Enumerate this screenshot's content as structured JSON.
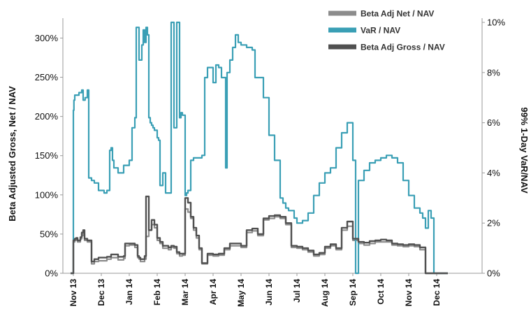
{
  "chart_data": {
    "type": "line",
    "title": "",
    "xlabel": "",
    "ylabel": "Beta Adjusted Gross, Net / NAV",
    "y2label": "99% 1-Day VaR/NAV",
    "ylim": [
      0,
      3.2
    ],
    "y2lim": [
      0,
      10
    ],
    "x_tick_labels": [
      "Nov 13",
      "Dec 13",
      "Jan 14",
      "Feb 14",
      "Mar 14",
      "Apr 14",
      "May 14",
      "Jun 14",
      "Jul 14",
      "Aug 14",
      "Sep 14",
      "Oct 14",
      "Nov 14",
      "Dec 14"
    ],
    "y_tick_labels": [
      "0%",
      "50%",
      "100%",
      "150%",
      "200%",
      "250%",
      "300%"
    ],
    "y_tick_values": [
      0,
      0.5,
      1.0,
      1.5,
      2.0,
      2.5,
      3.0
    ],
    "y2_tick_labels": [
      "0%",
      "2%",
      "4%",
      "6%",
      "8%",
      "10%"
    ],
    "y2_tick_values": [
      0,
      2,
      4,
      6,
      8,
      10
    ],
    "legend_position": "top-right",
    "grid": false,
    "series": [
      {
        "name": "Beta Adj Net / NAV",
        "axis": "left",
        "color": "#8c8c8c",
        "x": [
          -0.1,
          0.0,
          0.05,
          0.1,
          0.15,
          0.25,
          0.3,
          0.35,
          0.4,
          0.5,
          0.65,
          0.75,
          0.9,
          1.2,
          1.35,
          1.5,
          1.6,
          1.8,
          1.85,
          2.0,
          2.2,
          2.3,
          2.35,
          2.4,
          2.55,
          2.6,
          2.7,
          2.8,
          2.9,
          3.0,
          3.1,
          3.2,
          3.4,
          3.5,
          3.6,
          3.7,
          3.8,
          3.9,
          4.0,
          4.1,
          4.2,
          4.3,
          4.4,
          4.5,
          4.6,
          4.7,
          4.8,
          5.0,
          5.2,
          5.4,
          5.6,
          5.8,
          6.0,
          6.2,
          6.4,
          6.6,
          6.8,
          7.0,
          7.2,
          7.4,
          7.6,
          7.8,
          8.0,
          8.2,
          8.4,
          8.6,
          8.8,
          9.0,
          9.2,
          9.4,
          9.6,
          9.8,
          10.0,
          10.2,
          10.4,
          10.6,
          10.8,
          11.0,
          11.2,
          11.4,
          11.6,
          11.8,
          12.0,
          12.2,
          12.4,
          12.6,
          12.8,
          13.0,
          13.2,
          13.4
        ],
        "values": [
          0.0,
          0.4,
          0.42,
          0.43,
          0.4,
          0.44,
          0.48,
          0.5,
          0.42,
          0.4,
          0.12,
          0.15,
          0.16,
          0.18,
          0.2,
          0.2,
          0.17,
          0.19,
          0.35,
          0.36,
          0.33,
          0.2,
          0.18,
          0.15,
          0.18,
          0.47,
          0.55,
          0.62,
          0.58,
          0.42,
          0.38,
          0.32,
          0.3,
          0.33,
          0.32,
          0.25,
          0.22,
          0.23,
          0.82,
          0.78,
          0.7,
          0.55,
          0.45,
          0.3,
          0.12,
          0.12,
          0.23,
          0.22,
          0.23,
          0.3,
          0.35,
          0.35,
          0.33,
          0.52,
          0.54,
          0.48,
          0.68,
          0.7,
          0.72,
          0.7,
          0.62,
          0.33,
          0.32,
          0.3,
          0.27,
          0.22,
          0.24,
          0.32,
          0.35,
          0.3,
          0.55,
          0.6,
          0.42,
          0.38,
          0.36,
          0.38,
          0.4,
          0.4,
          0.4,
          0.36,
          0.35,
          0.34,
          0.35,
          0.34,
          0.3,
          0.0,
          0.0,
          0.0,
          0.0,
          0.0
        ]
      },
      {
        "name": "VaR / NAV",
        "axis": "right",
        "color": "#3a9fb5",
        "x": [
          -0.1,
          0.0,
          0.02,
          0.05,
          0.1,
          0.2,
          0.3,
          0.35,
          0.42,
          0.5,
          0.55,
          0.65,
          0.75,
          0.9,
          1.1,
          1.2,
          1.3,
          1.35,
          1.4,
          1.45,
          1.6,
          1.8,
          1.9,
          2.0,
          2.1,
          2.2,
          2.25,
          2.35,
          2.45,
          2.5,
          2.55,
          2.6,
          2.65,
          2.7,
          2.75,
          2.8,
          2.85,
          2.9,
          3.0,
          3.05,
          3.1,
          3.2,
          3.3,
          3.5,
          3.6,
          3.7,
          3.8,
          3.85,
          3.9,
          4.0,
          4.05,
          4.1,
          4.2,
          4.3,
          4.5,
          4.6,
          4.7,
          4.8,
          5.0,
          5.1,
          5.2,
          5.3,
          5.45,
          5.5,
          5.6,
          5.7,
          5.8,
          5.9,
          6.0,
          6.1,
          6.2,
          6.4,
          6.5,
          6.6,
          6.8,
          7.0,
          7.2,
          7.4,
          7.5,
          7.6,
          7.7,
          7.9,
          8.0,
          8.2,
          8.4,
          8.6,
          8.8,
          9.0,
          9.2,
          9.4,
          9.6,
          9.8,
          10.0,
          10.1,
          10.2,
          10.4,
          10.6,
          10.8,
          11.0,
          11.2,
          11.4,
          11.6,
          11.8,
          12.0,
          12.2,
          12.4,
          12.5,
          12.6,
          12.7,
          12.8,
          12.9,
          13.0,
          13.2,
          13.4
        ],
        "values": [
          0.0,
          6.5,
          6.9,
          7.1,
          7.1,
          7.2,
          7.3,
          6.9,
          7.0,
          7.3,
          3.8,
          3.7,
          3.6,
          3.3,
          3.2,
          3.3,
          4.9,
          5.0,
          4.5,
          4.2,
          4.0,
          4.3,
          4.3,
          4.5,
          5.8,
          6.2,
          9.8,
          8.5,
          9.1,
          9.7,
          9.2,
          9.8,
          9.5,
          6.2,
          6.0,
          5.9,
          5.8,
          5.7,
          5.4,
          5.3,
          3.5,
          4.0,
          3.2,
          10.2,
          5.8,
          10.2,
          6.2,
          6.4,
          6.3,
          3.1,
          3.2,
          3.3,
          4.5,
          4.6,
          4.6,
          4.7,
          7.8,
          8.2,
          7.6,
          8.3,
          8.2,
          7.8,
          4.2,
          8.0,
          8.5,
          9.0,
          9.5,
          9.2,
          9.1,
          9.1,
          9.0,
          8.9,
          7.8,
          7.8,
          7.0,
          5.5,
          4.5,
          3.0,
          2.8,
          2.6,
          2.5,
          2.2,
          2.0,
          2.1,
          2.4,
          3.1,
          3.6,
          4.0,
          4.2,
          5.0,
          5.6,
          6.0,
          4.5,
          0.0,
          3.7,
          4.1,
          4.4,
          4.5,
          4.6,
          4.7,
          4.6,
          4.4,
          3.7,
          3.1,
          2.6,
          2.4,
          2.2,
          1.8,
          2.5,
          2.2,
          0.0,
          0.0,
          0.0,
          0.0
        ]
      },
      {
        "name": "Beta Adj Gross / NAV",
        "axis": "left",
        "color": "#505050",
        "x": [
          -0.1,
          0.0,
          0.05,
          0.1,
          0.15,
          0.25,
          0.3,
          0.35,
          0.4,
          0.5,
          0.65,
          0.75,
          0.9,
          1.2,
          1.35,
          1.5,
          1.6,
          1.8,
          1.85,
          2.0,
          2.2,
          2.3,
          2.35,
          2.4,
          2.55,
          2.6,
          2.7,
          2.8,
          2.9,
          3.0,
          3.1,
          3.2,
          3.4,
          3.5,
          3.6,
          3.7,
          3.8,
          3.9,
          4.0,
          4.1,
          4.2,
          4.3,
          4.4,
          4.5,
          4.6,
          4.7,
          4.8,
          5.0,
          5.2,
          5.4,
          5.6,
          5.8,
          6.0,
          6.2,
          6.4,
          6.6,
          6.8,
          7.0,
          7.2,
          7.4,
          7.6,
          7.8,
          8.0,
          8.2,
          8.4,
          8.6,
          8.8,
          9.0,
          9.2,
          9.4,
          9.6,
          9.8,
          10.0,
          10.2,
          10.4,
          10.6,
          10.8,
          11.0,
          11.2,
          11.4,
          11.6,
          11.8,
          12.0,
          12.2,
          12.4,
          12.6,
          12.8,
          13.0,
          13.2,
          13.4
        ],
        "values": [
          0.0,
          0.42,
          0.44,
          0.45,
          0.42,
          0.46,
          0.52,
          0.55,
          0.44,
          0.42,
          0.15,
          0.18,
          0.2,
          0.21,
          0.24,
          0.24,
          0.21,
          0.22,
          0.38,
          0.38,
          0.36,
          0.22,
          0.2,
          0.18,
          0.22,
          0.98,
          0.55,
          0.68,
          0.62,
          0.45,
          0.4,
          0.35,
          0.33,
          0.35,
          0.34,
          0.27,
          0.25,
          0.25,
          0.96,
          0.9,
          0.72,
          0.58,
          0.48,
          0.32,
          0.13,
          0.13,
          0.25,
          0.24,
          0.25,
          0.32,
          0.38,
          0.38,
          0.35,
          0.55,
          0.57,
          0.5,
          0.7,
          0.73,
          0.74,
          0.72,
          0.64,
          0.35,
          0.34,
          0.32,
          0.29,
          0.24,
          0.26,
          0.34,
          0.37,
          0.32,
          0.58,
          0.66,
          0.44,
          0.4,
          0.39,
          0.41,
          0.42,
          0.43,
          0.42,
          0.38,
          0.37,
          0.36,
          0.37,
          0.36,
          0.33,
          0.0,
          0.0,
          0.0,
          0.0,
          0.0
        ]
      }
    ]
  }
}
